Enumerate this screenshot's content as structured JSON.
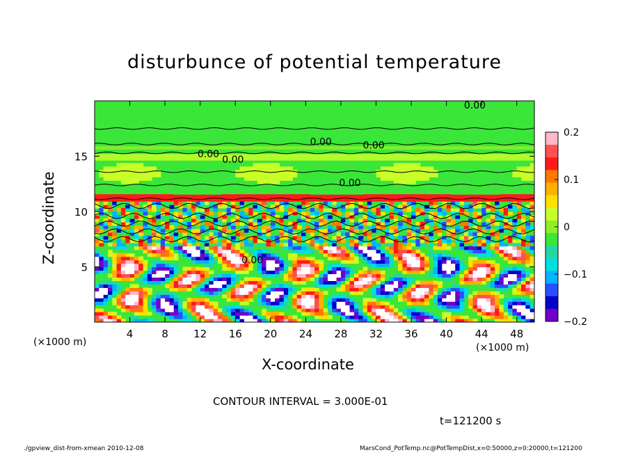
{
  "chart_data": {
    "type": "heatmap",
    "title": "disturbunce of potential temperature",
    "xlabel": "X-coordinate",
    "ylabel": "Z-coordinate",
    "x_unit": "(×1000 m)",
    "y_unit": "(×1000 m)",
    "xlim": [
      0,
      50
    ],
    "ylim": [
      0,
      20
    ],
    "x_ticks": [
      4,
      8,
      12,
      16,
      20,
      24,
      28,
      32,
      36,
      40,
      44,
      48
    ],
    "y_ticks": [
      5,
      10,
      15
    ],
    "colorbar": {
      "ticks": [
        0.2,
        0.1,
        0,
        -0.1,
        -0.2
      ],
      "tick_labels": [
        "0.2",
        "0.1",
        "0",
        "−0.1",
        "−0.2"
      ],
      "colors": [
        "#ffb8c8",
        "#ff5050",
        "#ff1a1a",
        "#ff7800",
        "#ffb000",
        "#ffe000",
        "#c8ff28",
        "#8cf028",
        "#3ae63a",
        "#22d8a0",
        "#00e0e0",
        "#00b4ff",
        "#2850ff",
        "#0000c8",
        "#7000c8"
      ],
      "range": [
        -0.2,
        0.2
      ]
    },
    "contour_labels": [
      "0.00",
      "0.00",
      "0.00",
      "0.00",
      "0.00",
      "0.00",
      "0.00"
    ],
    "contour_interval": "CONTOUR INTERVAL = 3.000E-01",
    "time": "t=121200 s"
  },
  "footer": {
    "left": "./gpview_dist-from-xmean  2010-12-08",
    "right": "MarsCond_PotTemp.nc@PotTempDist,x=0:50000,z=0:20000,t=121200"
  }
}
